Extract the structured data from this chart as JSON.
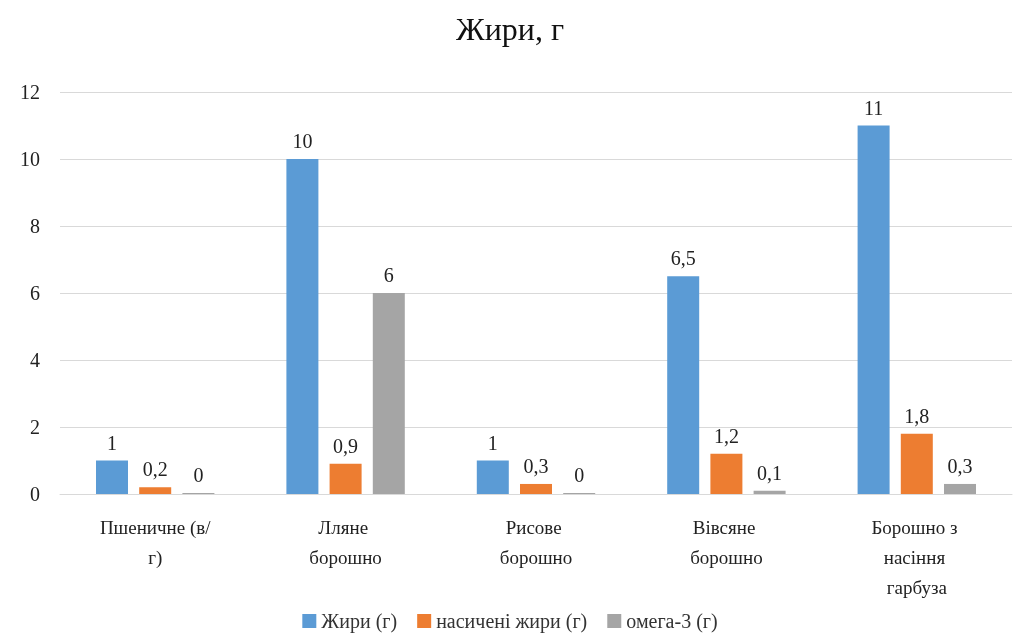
{
  "chart_data": {
    "type": "bar",
    "title": "Жири, г",
    "categories": [
      "Пшеничне (в/г)",
      "Лляне борошно",
      "Рисове борошно",
      "Вівсяне борошно",
      "Борошно з насіння гарбуза"
    ],
    "series": [
      {
        "name": "Жири (г)",
        "color": "#5b9bd5",
        "values": [
          1,
          10,
          1,
          6.5,
          11
        ],
        "value_labels": [
          "1",
          "10",
          "1",
          "6,5",
          "11"
        ]
      },
      {
        "name": "насичені жири (г)",
        "color": "#ed7d31",
        "values": [
          0.2,
          0.9,
          0.3,
          1.2,
          1.8
        ],
        "value_labels": [
          "0,2",
          "0,9",
          "0,3",
          "1,2",
          "1,8"
        ]
      },
      {
        "name": "омега-3 (г)",
        "color": "#a5a5a5",
        "values": [
          0,
          6,
          0,
          0.1,
          0.3
        ],
        "value_labels": [
          "0",
          "6",
          "0",
          "0,1",
          "0,3"
        ]
      }
    ],
    "ylim": [
      0,
      12
    ],
    "yticks": [
      0,
      2,
      4,
      6,
      8,
      10,
      12
    ],
    "grid": "y",
    "legend": "bottom"
  }
}
